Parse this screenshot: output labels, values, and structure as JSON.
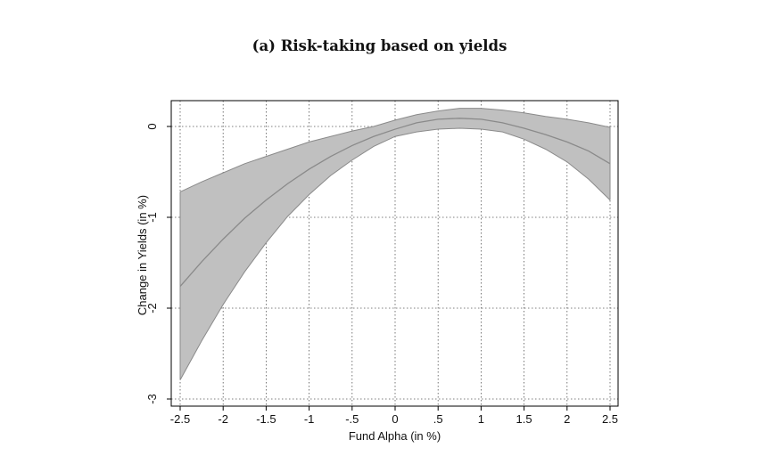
{
  "chart_data": {
    "type": "line",
    "title": "(a) Risk-taking based on yields",
    "xlabel": "Fund Alpha (in %)",
    "ylabel": "Change in Yields (in %)",
    "xlim": [
      -2.5,
      2.5
    ],
    "ylim": [
      -3,
      0
    ],
    "x_ticks": [
      -2.5,
      -2,
      -1.5,
      -1,
      -0.5,
      0,
      0.5,
      1,
      1.5,
      2,
      2.5
    ],
    "x_tick_labels": [
      "-2.5",
      "-2",
      "-1.5",
      "-1",
      "-.5",
      "0",
      ".5",
      "1",
      "1.5",
      "2",
      "2.5"
    ],
    "y_ticks": [
      -3,
      -2,
      -1,
      0
    ],
    "y_tick_labels": [
      "-3",
      "-2",
      "-1",
      "0"
    ],
    "grid": true,
    "colors": {
      "band": "#c0c0c0",
      "line": "#8a8a8a",
      "grid": "#555555"
    },
    "x": [
      -2.5,
      -2.25,
      -2,
      -1.75,
      -1.5,
      -1.25,
      -1,
      -0.75,
      -0.5,
      -0.25,
      0,
      0.25,
      0.5,
      0.75,
      1,
      1.25,
      1.5,
      1.75,
      2,
      2.25,
      2.5
    ],
    "estimate": [
      -1.76,
      -1.49,
      -1.24,
      -1.01,
      -0.81,
      -0.63,
      -0.47,
      -0.33,
      -0.21,
      -0.11,
      -0.03,
      0.04,
      0.08,
      0.09,
      0.08,
      0.04,
      -0.02,
      -0.09,
      -0.17,
      -0.27,
      -0.41
    ],
    "upper": [
      -0.72,
      -0.61,
      -0.51,
      -0.41,
      -0.33,
      -0.25,
      -0.17,
      -0.11,
      -0.05,
      0.0,
      0.07,
      0.13,
      0.17,
      0.2,
      0.2,
      0.18,
      0.15,
      0.11,
      0.08,
      0.04,
      -0.01
    ],
    "lower": [
      -2.79,
      -2.36,
      -1.96,
      -1.6,
      -1.28,
      -0.99,
      -0.75,
      -0.54,
      -0.37,
      -0.22,
      -0.11,
      -0.06,
      -0.03,
      -0.02,
      -0.03,
      -0.06,
      -0.14,
      -0.25,
      -0.39,
      -0.58,
      -0.81
    ]
  }
}
